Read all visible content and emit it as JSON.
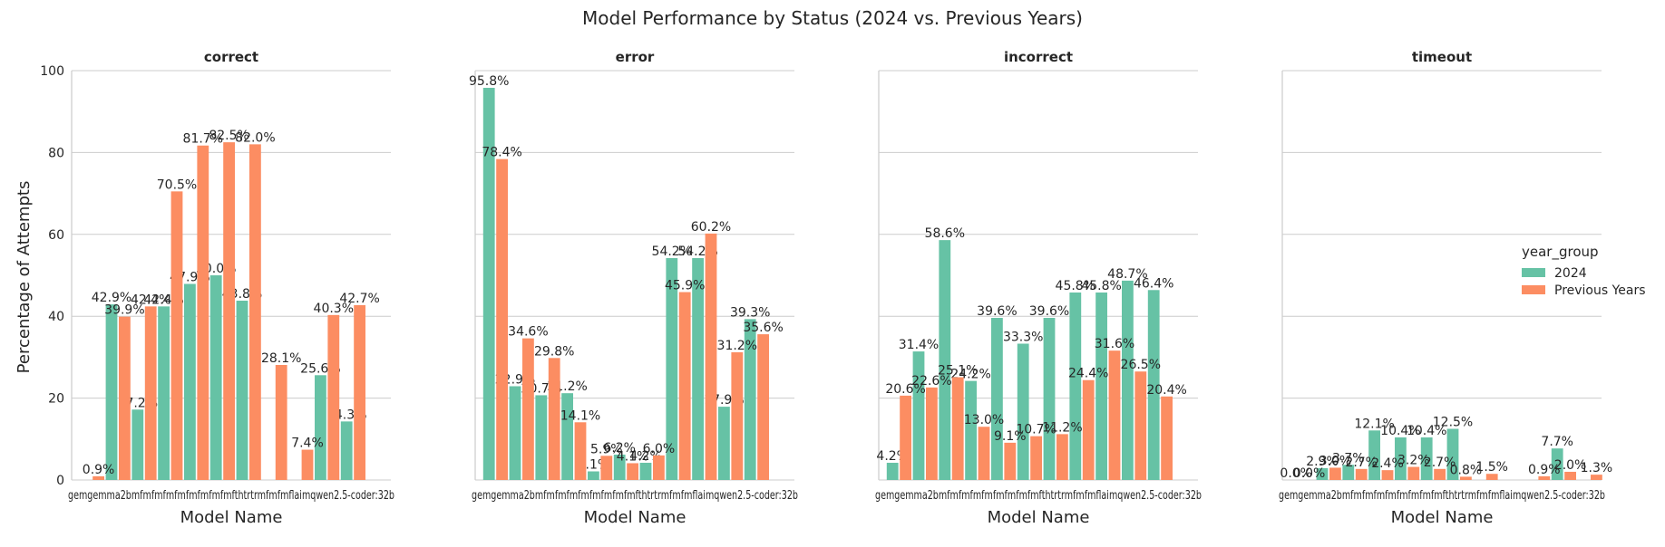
{
  "chart_data": {
    "type": "bar",
    "title": "Model Performance by Status (2024 vs. Previous Years)",
    "ylabel": "Percentage of Attempts",
    "xlabel": "Model Name",
    "ylim": [
      0,
      100
    ],
    "yticks": [
      0,
      20,
      40,
      60,
      80,
      100
    ],
    "grid": true,
    "legend": {
      "title": "year_group",
      "placement": "right",
      "entries": [
        "2024",
        "Previous Years"
      ]
    },
    "colors": {
      "2024": "#66c2a5",
      "Previous Years": "#fc8d62"
    },
    "categories": [
      "gemma",
      "gemma2",
      "gemma3",
      "gemma3n",
      "granite",
      "llama3",
      "llama3.1",
      "mistral",
      "phi4",
      "qwen2.5",
      "qwen3",
      "deepseek-r1",
      "qwen2.5-coder:32b"
    ],
    "category_tick_text": "gemgemma2bmfmfmfmfmfmfmfmfmfthtrtrmfmfmflaimqwen2.5-coder:32b",
    "panels": [
      {
        "title": "correct",
        "series": [
          {
            "name": "2024",
            "values": [
              0.0,
              42.9,
              17.2,
              42.4,
              47.9,
              50.0,
              43.8,
              0.0,
              0.0,
              25.6,
              14.3,
              0.0,
              0.0
            ],
            "labels": [
              "",
              "42.9%",
              "17.2%",
              "42.4%",
              "47.9%",
              "50.0%",
              "43.8%",
              "",
              "",
              "25.6%",
              "14.3%",
              "",
              ""
            ]
          },
          {
            "name": "Previous Years",
            "values": [
              0.9,
              39.9,
              42.4,
              70.5,
              81.7,
              82.5,
              82.0,
              28.1,
              7.4,
              40.3,
              42.7,
              0.0,
              0.0
            ],
            "labels": [
              "0.9%",
              "39.9%",
              "42.4%",
              "70.5%",
              "81.7%",
              "82.5%",
              "82.0%",
              "28.1%",
              "7.4%",
              "40.3%",
              "42.7%",
              "",
              ""
            ]
          }
        ]
      },
      {
        "title": "error",
        "series": [
          {
            "name": "2024",
            "values": [
              95.8,
              22.9,
              20.7,
              21.2,
              2.1,
              6.2,
              4.2,
              54.2,
              54.2,
              17.9,
              39.3,
              0.0,
              0.0
            ],
            "labels": [
              "95.8%",
              "22.9%",
              "20.7%",
              "21.2%",
              "2.1%",
              "6.2%",
              "4.2%",
              "54.2%",
              "54.2%",
              "17.9%",
              "39.3%",
              "",
              ""
            ]
          },
          {
            "name": "Previous Years",
            "values": [
              78.4,
              34.6,
              29.8,
              14.1,
              5.9,
              4.1,
              6.0,
              45.9,
              60.2,
              31.2,
              35.6,
              0.0,
              0.0
            ],
            "labels": [
              "78.4%",
              "34.6%",
              "29.8%",
              "14.1%",
              "5.9%",
              "4.1%",
              "6.0%",
              "45.9%",
              "60.2%",
              "31.2%",
              "35.6%",
              "",
              ""
            ]
          }
        ]
      },
      {
        "title": "incorrect",
        "series": [
          {
            "name": "2024",
            "values": [
              4.2,
              31.4,
              58.6,
              24.2,
              39.6,
              33.3,
              39.6,
              45.8,
              45.8,
              48.7,
              46.4,
              0.0,
              0.0
            ],
            "labels": [
              "4.2%",
              "31.4%",
              "58.6%",
              "24.2%",
              "39.6%",
              "33.3%",
              "39.6%",
              "45.8%",
              "45.8%",
              "48.7%",
              "46.4%",
              "",
              ""
            ]
          },
          {
            "name": "Previous Years",
            "values": [
              20.6,
              22.6,
              25.1,
              13.0,
              9.1,
              10.7,
              11.2,
              24.4,
              31.6,
              26.5,
              20.4,
              0.0,
              0.0
            ],
            "labels": [
              "20.6%",
              "22.6%",
              "25.1%",
              "13.0%",
              "9.1%",
              "10.7%",
              "11.2%",
              "24.4%",
              "31.6%",
              "26.5%",
              "20.4%",
              "",
              ""
            ]
          }
        ]
      },
      {
        "title": "timeout",
        "series": [
          {
            "name": "2024",
            "values": [
              0.0,
              2.9,
              3.7,
              12.1,
              10.4,
              10.4,
              12.5,
              0.0,
              0.0,
              0.0,
              7.7,
              0.0,
              0.0
            ],
            "labels": [
              "0.0%",
              "2.9%",
              "3.7%",
              "12.1%",
              "10.4%",
              "10.4%",
              "12.5%",
              "",
              "",
              "",
              "7.7%",
              "",
              ""
            ]
          },
          {
            "name": "Previous Years",
            "values": [
              0.0,
              3.0,
              2.7,
              2.4,
              3.2,
              2.7,
              0.8,
              1.5,
              0.0,
              0.9,
              2.0,
              1.3,
              0.0
            ],
            "labels": [
              "0.0%",
              "3.0%",
              "2.7%",
              "2.4%",
              "3.2%",
              "2.7%",
              "0.8%",
              "1.5%",
              "",
              "0.9%",
              "2.0%",
              "1.3%",
              ""
            ]
          }
        ]
      }
    ]
  }
}
